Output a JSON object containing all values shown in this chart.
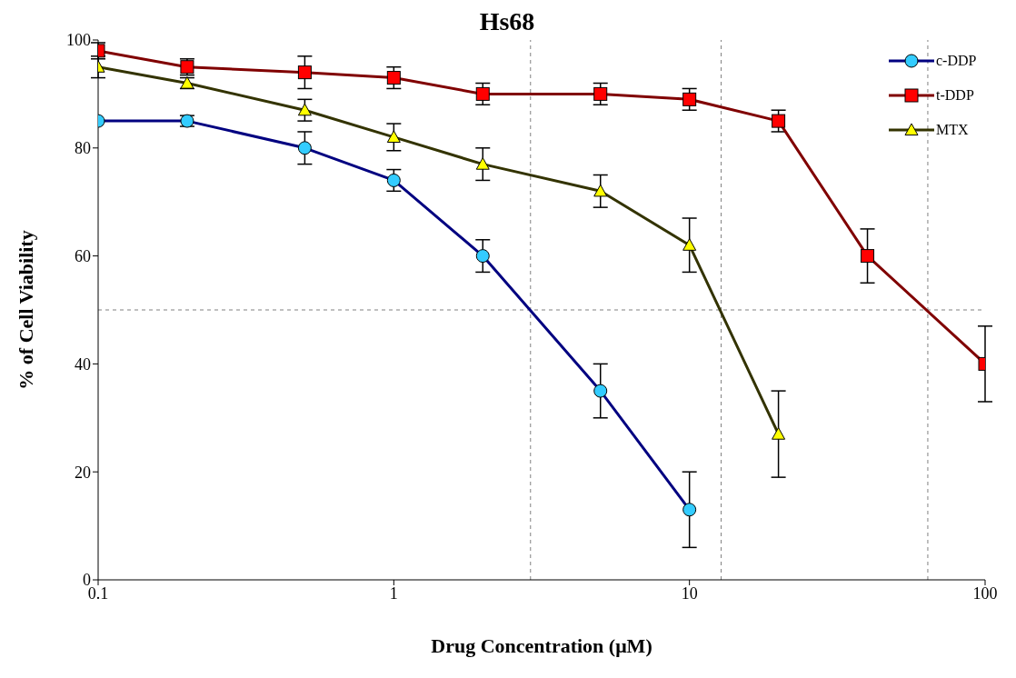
{
  "chart_data": {
    "type": "line",
    "title": "Hs68",
    "xlabel": "Drug Concentration (μM)",
    "ylabel": "% of Cell Viability",
    "log": "x",
    "xlim": [
      0.1,
      100
    ],
    "xticks": [
      0.1,
      1,
      10,
      100
    ],
    "ylim": [
      0,
      100
    ],
    "yticks": [
      0,
      20,
      40,
      60,
      80,
      100
    ],
    "grid": false,
    "legend": "top right",
    "line_style": "solid",
    "series": [
      {
        "name": "c-DDP",
        "color": "#000080",
        "marker": "circle",
        "colors": [
          "#33ccff",
          "#33ccff",
          "#33ccff",
          "#33ccff",
          "#33ccff",
          "#33ccff",
          "#33ccff"
        ],
        "x": [
          0.1,
          0.2,
          0.5,
          1,
          2,
          5,
          10
        ],
        "values": [
          85,
          85,
          80,
          74,
          60,
          35,
          13
        ],
        "errors": [
          null,
          1,
          3,
          2,
          3,
          5,
          7
        ]
      },
      {
        "name": "t-DDP",
        "color": "#800000",
        "marker": "square",
        "colors": [
          "#ff0000",
          "#ff0000",
          "#ff0000",
          "#ff0000",
          "#ff0000",
          "#ff0000",
          "#ff0000",
          "#ff0000",
          "#ff0000",
          "#ff0000"
        ],
        "x": [
          0.1,
          0.2,
          0.5,
          1,
          2,
          5,
          10,
          20,
          40,
          100
        ],
        "values": [
          98,
          95,
          94,
          93,
          90,
          90,
          89,
          85,
          60,
          40
        ],
        "errors": [
          1.5,
          1.5,
          3,
          2,
          2,
          2,
          2,
          2,
          5,
          7
        ]
      },
      {
        "name": "MTX",
        "color": "#333300",
        "marker": "triangle",
        "colors": [
          "#ffff00",
          "#ffff00",
          "#ffff00",
          "#ffff00",
          "#ffff00",
          "#ffff00",
          "#ffff00",
          "#ffff00"
        ],
        "x": [
          0.1,
          0.2,
          0.5,
          1,
          2,
          5,
          10,
          20
        ],
        "values": [
          95,
          92,
          87,
          82,
          77,
          72,
          62,
          27
        ],
        "errors": [
          2,
          1,
          2,
          2.5,
          3,
          3,
          5,
          8
        ]
      }
    ],
    "ref_lines": [
      {
        "axis": "y",
        "value": 50,
        "color": "#808080",
        "line_style": "dashed"
      },
      {
        "axis": "x",
        "value": 2.9,
        "color": "#808080",
        "line_style": "dashed"
      },
      {
        "axis": "x",
        "value": 12.8,
        "color": "#808080",
        "line_style": "dashed"
      },
      {
        "axis": "x",
        "value": 64,
        "color": "#808080",
        "line_style": "dashed"
      }
    ]
  }
}
